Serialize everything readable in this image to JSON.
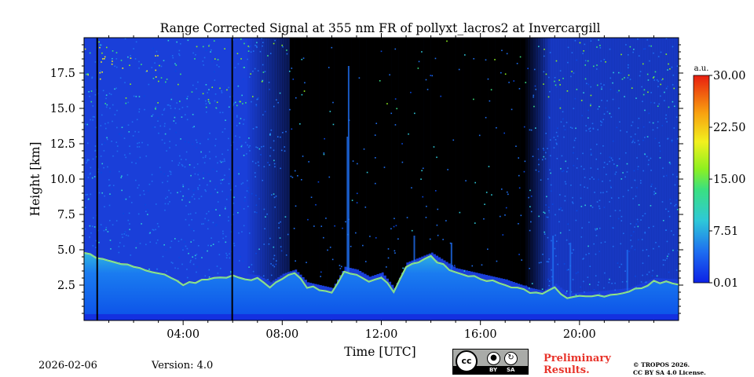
{
  "chart_data": {
    "type": "heatmap",
    "title": "Range Corrected Signal at 355 nm FR of pollyxt_lacros2 at Invercargill",
    "xlabel": "Time [UTC]",
    "ylabel": "Height [km]",
    "xlim_hours": [
      0,
      24
    ],
    "ylim_km": [
      0,
      20
    ],
    "x_ticks": [
      {
        "value": 4,
        "label": "04:00"
      },
      {
        "value": 8,
        "label": "08:00"
      },
      {
        "value": 12,
        "label": "12:00"
      },
      {
        "value": 16,
        "label": "16:00"
      },
      {
        "value": 20,
        "label": "20:00"
      }
    ],
    "y_ticks": [
      {
        "value": 2.5,
        "label": "2.5"
      },
      {
        "value": 5.0,
        "label": "5.0"
      },
      {
        "value": 7.5,
        "label": "7.5"
      },
      {
        "value": 10.0,
        "label": "10.0"
      },
      {
        "value": 12.5,
        "label": "12.5"
      },
      {
        "value": 15.0,
        "label": "15.0"
      },
      {
        "value": 17.5,
        "label": "17.5"
      }
    ],
    "colorbar": {
      "unit": "a.u.",
      "range": [
        0.01,
        30.0
      ],
      "ticks": [
        {
          "value": 0.01,
          "label": "0.01"
        },
        {
          "value": 7.51,
          "label": "7.51"
        },
        {
          "value": 15.0,
          "label": "15.00"
        },
        {
          "value": 22.5,
          "label": "22.50"
        },
        {
          "value": 30.0,
          "label": "30.00"
        }
      ]
    },
    "no_data_bands_hours": [
      [
        0.5,
        0.55
      ],
      [
        5.95,
        6.0
      ]
    ],
    "boundary_layer_top_km": [
      [
        0.0,
        4.8
      ],
      [
        1.0,
        4.2
      ],
      [
        2.0,
        3.9
      ],
      [
        3.0,
        3.4
      ],
      [
        4.0,
        2.6
      ],
      [
        5.0,
        2.9
      ],
      [
        6.0,
        3.1
      ],
      [
        7.0,
        2.9
      ],
      [
        7.5,
        2.4
      ],
      [
        8.0,
        3.0
      ],
      [
        8.5,
        3.3
      ],
      [
        9.0,
        2.4
      ],
      [
        10.0,
        2.0
      ],
      [
        10.5,
        3.5
      ],
      [
        11.0,
        3.3
      ],
      [
        11.5,
        2.8
      ],
      [
        12.0,
        3.1
      ],
      [
        12.5,
        2.0
      ],
      [
        13.0,
        3.8
      ],
      [
        14.0,
        4.5
      ],
      [
        15.0,
        3.4
      ],
      [
        16.0,
        3.0
      ],
      [
        17.0,
        2.6
      ],
      [
        18.0,
        2.0
      ],
      [
        18.5,
        1.8
      ],
      [
        19.0,
        2.3
      ],
      [
        19.5,
        1.6
      ],
      [
        20.0,
        1.7
      ],
      [
        21.0,
        1.8
      ],
      [
        22.0,
        2.0
      ],
      [
        23.0,
        2.7
      ],
      [
        24.0,
        2.6
      ]
    ]
  },
  "footer": {
    "date": "2026-02-06",
    "version": "Version: 4.0",
    "preliminary_line1": "Preliminary",
    "preliminary_line2": "Results.",
    "copyright_line1": "© TROPOS 2026.",
    "copyright_line2": "CC BY SA 4.0 License.",
    "license_badge": {
      "cc": "cc",
      "by": "BY",
      "sa": "SA"
    }
  },
  "colors": {
    "bg_clear": "#1a3fd9",
    "bg_dark": "#000000",
    "signal_low": "#0a6ef0",
    "signal_mid": "#3ce0c8",
    "signal_high": "#f0e848"
  }
}
